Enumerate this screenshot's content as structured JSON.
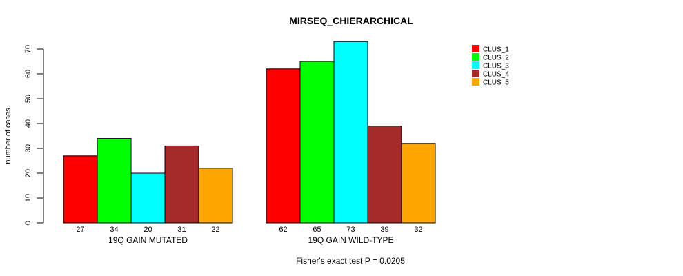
{
  "page": {
    "background": "#FFFFFF"
  },
  "chart_data": {
    "type": "bar",
    "title": "MIRSEQ_CHIERARCHICAL",
    "ylabel": "number of cases",
    "xlabel": "",
    "ylim": [
      0,
      70
    ],
    "yticks": [
      0,
      10,
      20,
      30,
      40,
      50,
      60,
      70
    ],
    "grid": false,
    "categories": [
      "19Q GAIN MUTATED",
      "19Q GAIN WILD-TYPE"
    ],
    "series": [
      {
        "name": "CLUS_1",
        "color": "#FF0000",
        "values": [
          27,
          62
        ]
      },
      {
        "name": "CLUS_2",
        "color": "#00FF00",
        "values": [
          34,
          65
        ]
      },
      {
        "name": "CLUS_3",
        "color": "#00FFFF",
        "values": [
          20,
          73
        ]
      },
      {
        "name": "CLUS_4",
        "color": "#A52A2A",
        "values": [
          31,
          39
        ]
      },
      {
        "name": "CLUS_5",
        "color": "#FFA500",
        "values": [
          22,
          32
        ]
      }
    ],
    "value_labels_under_bars": true,
    "bar_border_color": "#000000",
    "legend_position": "right",
    "annotation": "Fisher's exact test P = 0.0205"
  }
}
